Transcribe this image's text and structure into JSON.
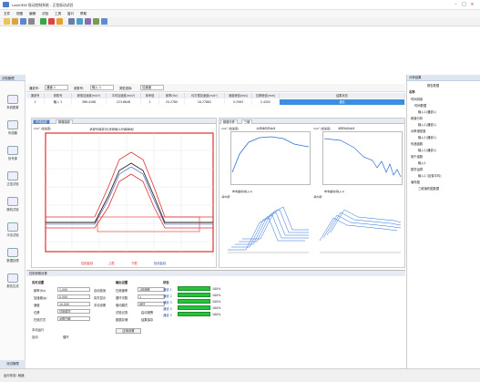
{
  "window": {
    "title": "LabVIEW 振动控制系统 - 正弦振动试验"
  },
  "menu": [
    "文件",
    "视图",
    "编辑",
    "试验",
    "工具",
    "窗口",
    "帮助"
  ],
  "toolbar_icons": [
    "new-icon",
    "open-icon",
    "save-icon",
    "print-icon",
    "run-icon",
    "stop-icon",
    "pause-icon",
    "settings-icon",
    "chart-icon",
    "table-icon",
    "zoom-icon",
    "help-icon"
  ],
  "left_nav": {
    "header": "试验管理",
    "items": [
      {
        "label": "系统配置",
        "icon": "gear-icon"
      },
      {
        "label": "传感器",
        "icon": "sensor-icon"
      },
      {
        "label": "信号源",
        "icon": "signal-icon"
      },
      {
        "label": "正弦试验",
        "icon": "sine-icon"
      },
      {
        "label": "随机试验",
        "icon": "random-icon"
      },
      {
        "label": "冲击试验",
        "icon": "shock-icon"
      },
      {
        "label": "数据处理",
        "icon": "data-icon"
      },
      {
        "label": "报告生成",
        "icon": "report-icon"
      }
    ],
    "bottom": "测试管理"
  },
  "selection": {
    "ch_label": "通道号:",
    "ch_value": "通道 1",
    "param_label": "参数号:",
    "param_value": "输入 1",
    "type_label": "类型选择:",
    "type_value": "加速度"
  },
  "grid": {
    "headers": [
      "通道号",
      "参数号",
      "峰值加速度(m/s²)",
      "平均加速度(m/s²)",
      "参考值",
      "频率(Hz)",
      "均方根加速度(m/s²)",
      "速度峰值(m/s)",
      "位移峰值(mm)",
      "结果状态"
    ],
    "row": [
      "1",
      "输入 1",
      "386.4168",
      "223.8648",
      "1",
      "20.2780",
      "16.27862",
      "0.2563",
      "2.4302",
      "通过"
    ]
  },
  "panels": {
    "main_tabs": [
      "时域曲线",
      "频谱曲线"
    ],
    "main_title": "多层时域显示(多层输入时域曲线)",
    "small_tabs": [
      "频谱分析",
      "三维"
    ],
    "s1_title": "功率谱密度曲线",
    "s2_title": "频率响应曲线",
    "s3_title": "瀑布图",
    "s4_title": "瀑布图",
    "legend_main": [
      "控制曲线",
      "上限",
      "下限",
      "检测曲线"
    ],
    "legend_s": "参考曲线(输入1)",
    "y_unit": "m/s² (加速度)",
    "x_unit": "Hz"
  },
  "right_panel": {
    "tabs": [
      "分析结果",
      "报告数据"
    ],
    "header": "名称",
    "tree": [
      "时间测量",
      "时间数据",
      "输入1(通道1)",
      "频谱分析",
      "输入1(通道1)",
      "功率谱密度",
      "输入1(通道1)",
      "传递函数",
      "输入1(通道1)",
      "相干函数",
      "输入1",
      "数学运算",
      "输入1 (加窗平均)",
      "瀑布图",
      "三维瀑布图数据"
    ]
  },
  "bottom": {
    "title": "控制参数设置",
    "group1": "实时设置",
    "fields": [
      {
        "label": "频率(Hz)",
        "value": "1.000"
      },
      {
        "label": "加速度(g)",
        "value": "0.500"
      },
      {
        "label": "速度",
        "value": "10.000"
      },
      {
        "label": "位移",
        "value": "试验模式"
      },
      {
        "label": "扫频方式",
        "value": "对数扫频"
      }
    ],
    "options": [
      "自动检测",
      "实时显示",
      "手动设置"
    ],
    "group2": "输出设置",
    "out_fields": [
      {
        "label": "扫频速率",
        "value": "1倍频程"
      },
      {
        "label": "循环次数",
        "value": "1"
      },
      {
        "label": "驱动模式",
        "value": "闭环"
      }
    ],
    "checks": [
      "试验记录",
      "启动报警",
      "数据存储",
      "结果保存"
    ],
    "progress_title": "状态",
    "progress": [
      {
        "label": "通道 1",
        "pct": "100%"
      },
      {
        "label": "通道 2",
        "pct": "100%"
      },
      {
        "label": "通道 3",
        "pct": "100%"
      },
      {
        "label": "通道 4",
        "pct": "100%"
      },
      {
        "label": "通道 5",
        "pct": "100%"
      }
    ],
    "radio1": "手动运行",
    "radio2": "自动",
    "radio3": "循环",
    "action": "应用设置"
  },
  "status": "运行状态: 就绪"
}
